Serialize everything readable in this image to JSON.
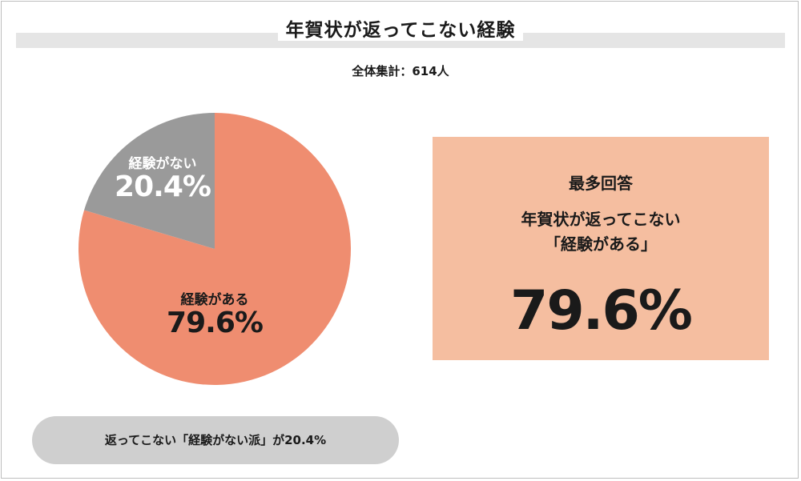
{
  "title": "年賀状が返ってこない経験",
  "subtitle": "全体集計：614人",
  "chart_data": {
    "type": "pie",
    "title": "年賀状が返ってこない経験",
    "slices": [
      {
        "label": "経験がある",
        "value": 79.6,
        "value_label": "79.6%",
        "color": "#ef8d70"
      },
      {
        "label": "経験がない",
        "value": 20.4,
        "value_label": "20.4%",
        "color": "#9a9a9a"
      }
    ]
  },
  "summary": {
    "heading": "最多回答",
    "answer_line1": "年賀状が返ってこない",
    "answer_line2": "「経験がある」",
    "percent": "79.6%"
  },
  "footer_note": "返ってこない「経験がない派」が20.4%"
}
